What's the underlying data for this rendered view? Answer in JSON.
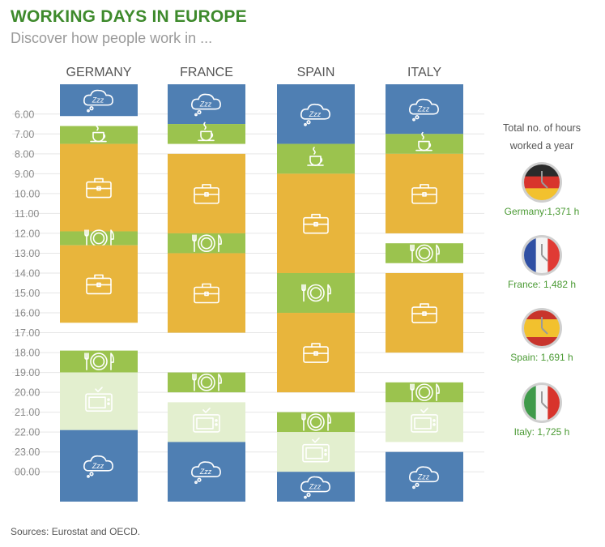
{
  "title": "WORKING DAYS IN EUROPE",
  "subtitle": "Discover how people work in ...",
  "source": "Sources: Eurostat and OECD.",
  "hours_title_lines": [
    "Total no. of hours",
    "worked a year"
  ],
  "chart_data": {
    "type": "table",
    "y_ticks": [
      "6.00",
      "7.00",
      "8.00",
      "9.00",
      "10.00",
      "11.00",
      "12.00",
      "13.00",
      "14.00",
      "15.00",
      "16.00",
      "17.00",
      "18.00",
      "19.00",
      "20.00",
      "21.00",
      "22.00",
      "23.00",
      "00.00"
    ],
    "y_range_hours": [
      4.5,
      25.5
    ],
    "activity_colors": {
      "sleep": "#4f7fb3",
      "breakfast": "#9bc34e",
      "work": "#e8b53c",
      "lunch": "#9bc34e",
      "dinner": "#9bc34e",
      "tv": "#e3efcf"
    },
    "activity_icons": {
      "sleep": "zzz-cloud-icon",
      "breakfast": "coffee-cup-icon",
      "work": "briefcase-icon",
      "lunch": "plate-cutlery-icon",
      "dinner": "plate-cutlery-icon",
      "tv": "tv-icon"
    },
    "countries": [
      {
        "name": "GERMANY",
        "hours_label": "Germany:1,371 h",
        "annual_hours": 1371,
        "flag_colors": [
          "#2b2b2b",
          "#d8342c",
          "#f2c12e"
        ],
        "flag_orientation": "horizontal",
        "blocks": [
          {
            "activity": "sleep",
            "start": 4.5,
            "end": 6.1
          },
          {
            "activity": "breakfast",
            "start": 6.6,
            "end": 7.5
          },
          {
            "activity": "work",
            "start": 7.5,
            "end": 11.9
          },
          {
            "activity": "lunch",
            "start": 11.9,
            "end": 12.6
          },
          {
            "activity": "work",
            "start": 12.6,
            "end": 16.5
          },
          {
            "activity": "dinner",
            "start": 17.9,
            "end": 19.0
          },
          {
            "activity": "tv",
            "start": 19.0,
            "end": 21.9
          },
          {
            "activity": "sleep",
            "start": 21.9,
            "end": 25.5
          }
        ]
      },
      {
        "name": "FRANCE",
        "hours_label": "France: 1,482 h",
        "annual_hours": 1482,
        "flag_colors": [
          "#2f4fa3",
          "#f4f4f4",
          "#e03a34"
        ],
        "flag_orientation": "vertical",
        "blocks": [
          {
            "activity": "sleep",
            "start": 4.5,
            "end": 6.5
          },
          {
            "activity": "breakfast",
            "start": 6.5,
            "end": 7.5
          },
          {
            "activity": "work",
            "start": 8.0,
            "end": 12.0
          },
          {
            "activity": "lunch",
            "start": 12.0,
            "end": 13.0
          },
          {
            "activity": "work",
            "start": 13.0,
            "end": 17.0
          },
          {
            "activity": "dinner",
            "start": 19.0,
            "end": 20.0
          },
          {
            "activity": "tv",
            "start": 20.5,
            "end": 22.5
          },
          {
            "activity": "sleep",
            "start": 22.5,
            "end": 25.5
          }
        ]
      },
      {
        "name": "SPAIN",
        "hours_label": "Spain: 1,691 h",
        "annual_hours": 1691,
        "flag_colors": [
          "#c8342c",
          "#f2c12e",
          "#c8342c"
        ],
        "flag_orientation": "horizontal",
        "blocks": [
          {
            "activity": "sleep",
            "start": 4.5,
            "end": 7.5
          },
          {
            "activity": "breakfast",
            "start": 7.5,
            "end": 9.0
          },
          {
            "activity": "work",
            "start": 9.0,
            "end": 14.0
          },
          {
            "activity": "lunch",
            "start": 14.0,
            "end": 16.0
          },
          {
            "activity": "work",
            "start": 16.0,
            "end": 20.0
          },
          {
            "activity": "dinner",
            "start": 21.0,
            "end": 22.0
          },
          {
            "activity": "tv",
            "start": 22.0,
            "end": 24.0
          },
          {
            "activity": "sleep",
            "start": 24.0,
            "end": 25.5
          }
        ]
      },
      {
        "name": "ITALY",
        "hours_label": "Italy:  1,725 h",
        "annual_hours": 1725,
        "flag_colors": [
          "#3f9a4a",
          "#f4f4f4",
          "#d8342c"
        ],
        "flag_orientation": "vertical",
        "blocks": [
          {
            "activity": "sleep",
            "start": 4.5,
            "end": 7.0
          },
          {
            "activity": "breakfast",
            "start": 7.0,
            "end": 8.0
          },
          {
            "activity": "work",
            "start": 8.0,
            "end": 12.0
          },
          {
            "activity": "lunch",
            "start": 12.5,
            "end": 13.5
          },
          {
            "activity": "work",
            "start": 14.0,
            "end": 18.0
          },
          {
            "activity": "dinner",
            "start": 19.5,
            "end": 20.5
          },
          {
            "activity": "tv",
            "start": 20.5,
            "end": 22.5
          },
          {
            "activity": "sleep",
            "start": 23.0,
            "end": 25.5
          }
        ]
      }
    ]
  }
}
